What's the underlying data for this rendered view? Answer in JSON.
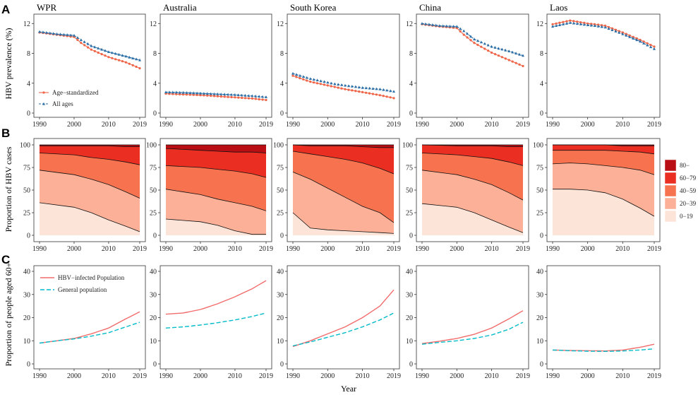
{
  "colors": {
    "age_std": "#ef6548",
    "all_ages": "#2c6fa6",
    "hbv_line": "#f26c6c",
    "general_line": "#00bcc8",
    "age_bands": [
      "#fde4d8",
      "#fbb097",
      "#f7734f",
      "#ea2f22",
      "#b90f14"
    ]
  },
  "labels": {
    "letters": [
      "A",
      "B",
      "C"
    ],
    "x_axis_title": "Year",
    "y_axis_A": "HBV prevalence (%)",
    "y_axis_B": "Proportion of HBV cases",
    "y_axis_C": "Proportion of people aged 60+",
    "legend_A": [
      "Age−standardized",
      "All ages"
    ],
    "legend_B": [
      "80−",
      "60−79",
      "40−59",
      "20−39",
      "0−19"
    ],
    "legend_C": [
      "HBV−infected Population",
      "General population"
    ]
  },
  "chart_data": [
    {
      "panel": "A",
      "type": "line",
      "ylabel": "HBV prevalence (%)",
      "xlabel": "Year",
      "xlim": [
        1990,
        2019
      ],
      "ylim": [
        0,
        12.5
      ],
      "xticks": [
        1990,
        2000,
        2010,
        2019
      ],
      "yticks": [
        0,
        4,
        8,
        12
      ],
      "legend": [
        "Age−standardized",
        "All ages"
      ],
      "facets": [
        {
          "title": "WPR",
          "years": [
            1990,
            1995,
            2000,
            2002,
            2005,
            2010,
            2015,
            2019
          ],
          "series": [
            {
              "name": "Age−standardized",
              "values": [
                10.8,
                10.5,
                10.2,
                9.4,
                8.5,
                7.5,
                6.8,
                6.0
              ]
            },
            {
              "name": "All ages",
              "values": [
                10.9,
                10.6,
                10.4,
                9.8,
                9.0,
                8.2,
                7.6,
                7.1
              ]
            }
          ]
        },
        {
          "title": "Australia",
          "years": [
            1990,
            1995,
            2000,
            2002,
            2005,
            2010,
            2015,
            2019
          ],
          "series": [
            {
              "name": "Age−standardized",
              "values": [
                2.6,
                2.5,
                2.4,
                2.35,
                2.25,
                2.1,
                1.95,
                1.75
              ]
            },
            {
              "name": "All ages",
              "values": [
                2.8,
                2.75,
                2.65,
                2.6,
                2.55,
                2.45,
                2.3,
                2.15
              ]
            }
          ]
        },
        {
          "title": "South Korea",
          "years": [
            1990,
            1995,
            2000,
            2002,
            2005,
            2010,
            2015,
            2019
          ],
          "series": [
            {
              "name": "Age−standardized",
              "values": [
                5.0,
                4.2,
                3.7,
                3.5,
                3.2,
                2.8,
                2.4,
                2.0
              ]
            },
            {
              "name": "All ages",
              "values": [
                5.3,
                4.6,
                4.1,
                3.9,
                3.7,
                3.4,
                3.2,
                2.9
              ]
            }
          ]
        },
        {
          "title": "China",
          "years": [
            1990,
            1995,
            2000,
            2002,
            2005,
            2010,
            2015,
            2019
          ],
          "series": [
            {
              "name": "Age−standardized",
              "values": [
                11.9,
                11.6,
                11.4,
                10.5,
                9.4,
                8.1,
                7.1,
                6.3
              ]
            },
            {
              "name": "All ages",
              "values": [
                12.0,
                11.7,
                11.6,
                11.0,
                9.9,
                8.9,
                8.3,
                7.7
              ]
            }
          ]
        },
        {
          "title": "Laos",
          "years": [
            1990,
            1995,
            2000,
            2002,
            2005,
            2010,
            2015,
            2019
          ],
          "series": [
            {
              "name": "Age−standardized",
              "values": [
                11.9,
                12.4,
                12.0,
                11.9,
                11.7,
                10.8,
                9.8,
                8.9
              ]
            },
            {
              "name": "All ages",
              "values": [
                11.6,
                12.1,
                11.8,
                11.7,
                11.5,
                10.6,
                9.6,
                8.6
              ]
            }
          ]
        }
      ]
    },
    {
      "panel": "B",
      "type": "area",
      "ylabel": "Proportion of HBV cases",
      "xlim": [
        1990,
        2019
      ],
      "ylim": [
        0,
        100
      ],
      "xticks": [
        1990,
        2000,
        2010,
        2019
      ],
      "yticks": [
        0,
        25,
        50,
        75,
        100
      ],
      "legend": [
        "80−",
        "60−79",
        "40−59",
        "20−39",
        "0−19"
      ],
      "boundary_note": "cumulative upper boundaries of 0−19, 0−39, 0−59, 0−79 (top of 80− is 100)",
      "facets": [
        {
          "title": "WPR",
          "years": [
            1990,
            2000,
            2005,
            2010,
            2015,
            2019
          ],
          "boundaries": [
            [
              36,
              31,
              25,
              17,
              10,
              4
            ],
            [
              72,
              67,
              62,
              56,
              48,
              41
            ],
            [
              91,
              89,
              86,
              84,
              81,
              78
            ],
            [
              99,
              99,
              99,
              99,
              98,
              98
            ]
          ]
        },
        {
          "title": "Australia",
          "years": [
            1990,
            2000,
            2005,
            2010,
            2015,
            2019
          ],
          "boundaries": [
            [
              18,
              15,
              11,
              5,
              1,
              1
            ],
            [
              51,
              45,
              40,
              36,
              32,
              27
            ],
            [
              77,
              75,
              73,
              71,
              68,
              64
            ],
            [
              96,
              94,
              93,
              92,
              92,
              91
            ]
          ]
        },
        {
          "title": "South Korea",
          "years": [
            1990,
            1995,
            2000,
            2005,
            2010,
            2015,
            2019
          ],
          "boundaries": [
            [
              25,
              8,
              6,
              5,
              4,
              3,
              2
            ],
            [
              70,
              62,
              52,
              42,
              32,
              25,
              14
            ],
            [
              93,
              90,
              87,
              84,
              80,
              74,
              68
            ],
            [
              100,
              99,
              99,
              99,
              98,
              97,
              97
            ]
          ]
        },
        {
          "title": "China",
          "years": [
            1990,
            2000,
            2005,
            2010,
            2015,
            2019
          ],
          "boundaries": [
            [
              35,
              31,
              25,
              17,
              9,
              3
            ],
            [
              72,
              67,
              62,
              56,
              47,
              39
            ],
            [
              91,
              89,
              87,
              85,
              81,
              77
            ],
            [
              100,
              99,
              99,
              99,
              98,
              98
            ]
          ]
        },
        {
          "title": "Laos",
          "years": [
            1990,
            1995,
            2000,
            2005,
            2010,
            2015,
            2019
          ],
          "boundaries": [
            [
              51,
              51,
              50,
              47,
              40,
              30,
              21
            ],
            [
              79,
              80,
              79,
              77,
              75,
              72,
              67
            ],
            [
              94,
              94,
              94,
              94,
              93,
              92,
              90
            ],
            [
              100,
              100,
              100,
              100,
              99,
              99,
              99
            ]
          ]
        }
      ]
    },
    {
      "panel": "C",
      "type": "line",
      "ylabel": "Proportion of people aged 60+",
      "xlabel": "Year",
      "xlim": [
        1990,
        2019
      ],
      "ylim": [
        0,
        40
      ],
      "xticks": [
        1990,
        2000,
        2010,
        2019
      ],
      "yticks": [
        0,
        10,
        20,
        30,
        40
      ],
      "legend": [
        "HBV−infected Population",
        "General population"
      ],
      "facets": [
        {
          "title": "WPR",
          "years": [
            1990,
            1995,
            2000,
            2005,
            2010,
            2015,
            2019
          ],
          "series": [
            {
              "name": "HBV−infected Population",
              "values": [
                9.0,
                10.0,
                11.0,
                13.0,
                15.5,
                19.5,
                22.5
              ]
            },
            {
              "name": "General population",
              "values": [
                9.0,
                10.0,
                10.8,
                12.0,
                13.5,
                16.0,
                18.0
              ]
            }
          ]
        },
        {
          "title": "Australia",
          "years": [
            1990,
            1995,
            2000,
            2005,
            2010,
            2015,
            2019
          ],
          "series": [
            {
              "name": "HBV−infected Population",
              "values": [
                21.5,
                22.0,
                23.5,
                26.0,
                29.0,
                32.5,
                36.0
              ]
            },
            {
              "name": "General population",
              "values": [
                15.5,
                16.0,
                16.8,
                17.8,
                19.0,
                20.5,
                22.0
              ]
            }
          ]
        },
        {
          "title": "South Korea",
          "years": [
            1990,
            1995,
            2000,
            2005,
            2010,
            2015,
            2019
          ],
          "series": [
            {
              "name": "HBV−infected Population",
              "values": [
                7.5,
                10.0,
                13.0,
                16.0,
                20.0,
                25.0,
                32.0
              ]
            },
            {
              "name": "General population",
              "values": [
                7.8,
                9.5,
                11.5,
                13.5,
                16.0,
                19.0,
                22.0
              ]
            }
          ]
        },
        {
          "title": "China",
          "years": [
            1990,
            1995,
            2000,
            2005,
            2010,
            2015,
            2019
          ],
          "series": [
            {
              "name": "HBV−infected Population",
              "values": [
                8.8,
                9.8,
                11.0,
                12.8,
                15.5,
                19.5,
                23.0
              ]
            },
            {
              "name": "General population",
              "values": [
                8.5,
                9.3,
                10.0,
                11.0,
                12.5,
                15.0,
                18.0
              ]
            }
          ]
        },
        {
          "title": "Laos",
          "years": [
            1990,
            1995,
            2000,
            2005,
            2010,
            2015,
            2019
          ],
          "series": [
            {
              "name": "HBV−infected Population",
              "values": [
                6.0,
                5.8,
                5.7,
                5.6,
                6.0,
                7.2,
                8.5
              ]
            },
            {
              "name": "General population",
              "values": [
                6.0,
                5.7,
                5.5,
                5.4,
                5.6,
                6.0,
                6.5
              ]
            }
          ]
        }
      ]
    }
  ]
}
